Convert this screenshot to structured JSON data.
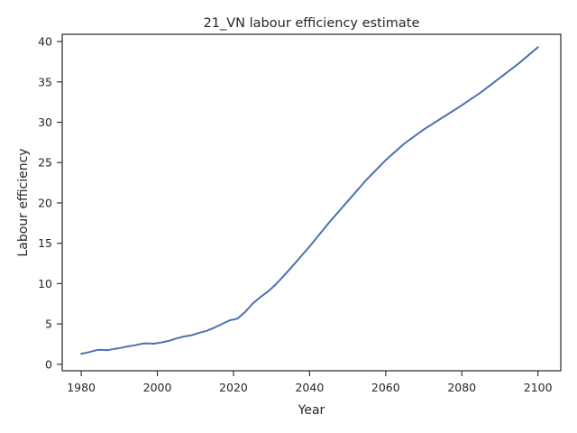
{
  "chart_data": {
    "type": "line",
    "title": "21_VN labour efficiency estimate",
    "xlabel": "Year",
    "ylabel": "Labour efficiency",
    "xlim": [
      1975,
      2106
    ],
    "ylim": [
      -0.8,
      40.9
    ],
    "xticks": [
      1980,
      2000,
      2020,
      2040,
      2060,
      2080,
      2100
    ],
    "yticks": [
      0,
      5,
      10,
      15,
      20,
      25,
      30,
      35,
      40
    ],
    "grid": false,
    "legend": "none",
    "colors": {
      "series": "#4c72b0",
      "axes": "#262626"
    },
    "series": [
      {
        "x": [
          1980,
          1982,
          1984,
          1985,
          1987,
          1988,
          1990,
          1992,
          1994,
          1996,
          1997,
          1999,
          2001,
          2003,
          2005,
          2007,
          2009,
          2011,
          2013,
          2015,
          2017,
          2019,
          2021,
          2023,
          2025,
          2027,
          2029,
          2031,
          2033,
          2035,
          2040,
          2045,
          2050,
          2055,
          2060,
          2065,
          2070,
          2075,
          2080,
          2085,
          2090,
          2095,
          2100
        ],
        "y": [
          1.3,
          1.5,
          1.75,
          1.8,
          1.75,
          1.85,
          2.0,
          2.2,
          2.35,
          2.55,
          2.6,
          2.55,
          2.7,
          2.9,
          3.2,
          3.45,
          3.6,
          3.9,
          4.15,
          4.55,
          5.0,
          5.45,
          5.65,
          6.45,
          7.5,
          8.3,
          9.0,
          9.85,
          10.85,
          11.9,
          14.6,
          17.5,
          20.2,
          22.9,
          25.3,
          27.4,
          29.1,
          30.6,
          32.1,
          33.7,
          35.5,
          37.3,
          39.3
        ]
      }
    ]
  }
}
